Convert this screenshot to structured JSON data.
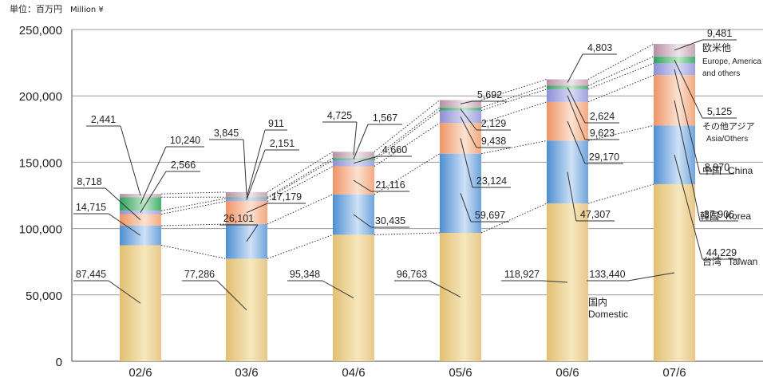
{
  "unit_label": {
    "jp": "単位：百万円",
    "en": "Million ¥"
  },
  "chart_data": {
    "type": "bar",
    "stacked": true,
    "categories": [
      "02/6",
      "03/6",
      "04/6",
      "05/6",
      "06/6",
      "07/6"
    ],
    "ylim": [
      0,
      250000
    ],
    "yticks": [
      "0",
      "50,000",
      "100,000",
      "150,000",
      "200,000",
      "250,000"
    ],
    "ytick_values": [
      0,
      50000,
      100000,
      150000,
      200000,
      250000
    ],
    "grid": true,
    "series": [
      {
        "name": "国内 Domestic",
        "name_jp": "国内",
        "name_en": "Domestic",
        "values": [
          87445,
          77286,
          95348,
          96763,
          118927,
          133440
        ],
        "labels": [
          "87,445",
          "77,286",
          "95,348",
          "96,763",
          "118,927",
          "133,440"
        ],
        "colors": [
          "#e2bf72",
          "#f6e7bd",
          "#e8c88a"
        ]
      },
      {
        "name": "台湾 Taiwan",
        "name_jp": "台湾",
        "name_en": "Taiwan",
        "values": [
          14715,
          26101,
          30435,
          59697,
          47307,
          44229
        ],
        "labels": [
          "14,715",
          "26,101",
          "30,435",
          "59,697",
          "47,307",
          "44,229"
        ],
        "colors": [
          "#4d8fd2",
          "#cfe1f5",
          "#6ea4dc"
        ]
      },
      {
        "name": "韓国 Korea",
        "name_jp": "韓国",
        "name_en": "Korea",
        "values": [
          8718,
          17179,
          21116,
          23124,
          29170,
          37906
        ],
        "labels": [
          "8,718",
          "17,179",
          "21,116",
          "23,124",
          "29,170",
          "37,906"
        ],
        "colors": [
          "#f09466",
          "#fbe2d2",
          "#f4a97f"
        ]
      },
      {
        "name": "中国 China",
        "name_jp": "中国",
        "name_en": "China",
        "values": [
          2566,
          2151,
          4660,
          9438,
          9623,
          8970
        ],
        "labels": [
          "2,566",
          "2,151",
          "4,660",
          "9,438",
          "9,623",
          "8,970"
        ],
        "colors": [
          "#8c8fd6",
          "#d9daf3",
          "#9fa2dc"
        ]
      },
      {
        "name": "その他アジア Asia/Others",
        "name_jp": "その他アジア",
        "name_en": "Asia/Others",
        "values": [
          10240,
          911,
          1567,
          2129,
          2624,
          5125
        ],
        "labels": [
          "10,240",
          "911",
          "1,567",
          "2,129",
          "2,624",
          "5,125"
        ],
        "colors": [
          "#2fa15a",
          "#bfe5c9",
          "#47b06d"
        ]
      },
      {
        "name": "欧米他 Europe, America and others",
        "name_jp": "欧米他",
        "name_en": "Europe, America and others",
        "values": [
          2441,
          3845,
          4725,
          5692,
          4803,
          9481
        ],
        "labels": [
          "2,441",
          "3,845",
          "4,725",
          "5,692",
          "4,803",
          "9,481"
        ],
        "colors": [
          "#b58fa3",
          "#efe3ea",
          "#c7a6b7"
        ]
      }
    ],
    "legend": [
      {
        "jp": "欧米他",
        "en": "Europe, America",
        "en2": "and others"
      },
      {
        "jp": "その他アジア",
        "en": "Asia/Others"
      },
      {
        "jp": "中国",
        "en": "China"
      },
      {
        "jp": "韓国",
        "en": "Korea"
      },
      {
        "jp": "台湾",
        "en": "Taiwan"
      },
      {
        "jp": "国内",
        "en": "Domestic"
      }
    ]
  }
}
